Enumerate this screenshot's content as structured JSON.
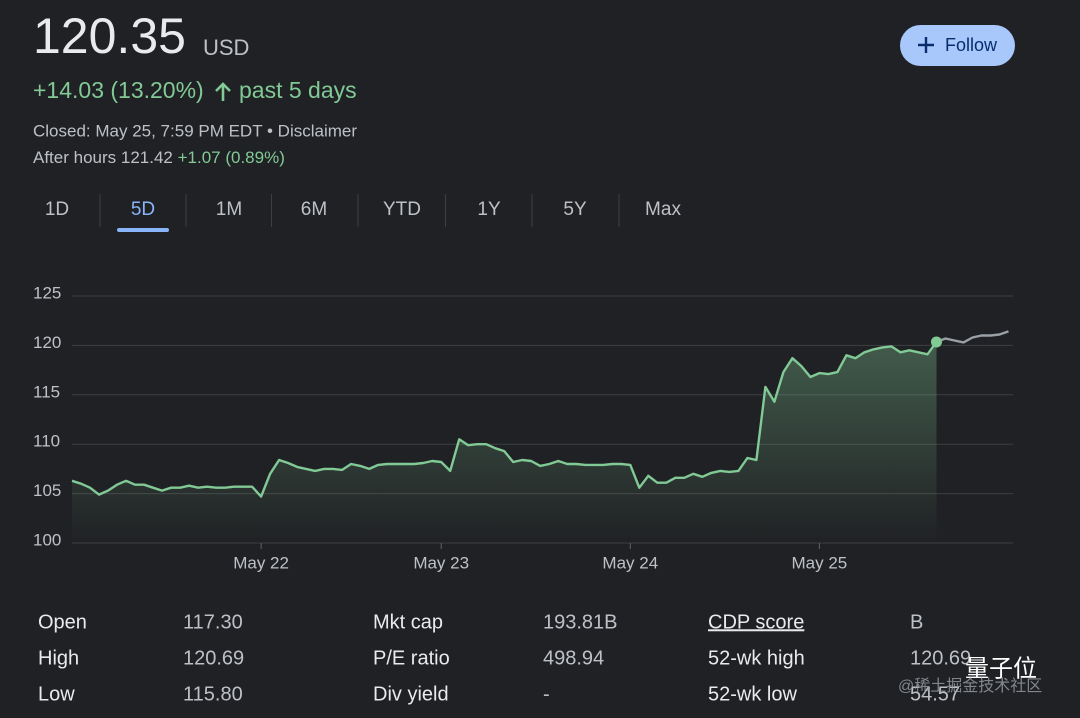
{
  "header": {
    "price": "120.35",
    "currency": "USD",
    "change": "+14.03 (13.20%)",
    "period": "past 5 days",
    "closed": "Closed: May 25, 7:59 PM EDT • Disclaimer",
    "after_hours": "After hours 121.42",
    "after_hours_change": "+1.07 (0.89%)",
    "follow": "Follow"
  },
  "tabs": [
    "1D",
    "5D",
    "1M",
    "6M",
    "YTD",
    "1Y",
    "5Y",
    "Max"
  ],
  "selected_tab": 1,
  "chart_data": {
    "type": "line",
    "color": "#81c995",
    "after_hours_color": "#9aa0a6",
    "values": [
      106.3,
      106.0,
      105.6,
      104.9,
      105.3,
      105.9,
      106.3,
      105.9,
      105.9,
      105.6,
      105.3,
      105.6,
      105.6,
      105.8,
      105.6,
      105.7,
      105.6,
      105.6,
      105.7,
      105.7,
      105.7,
      104.7,
      107.0,
      108.4,
      108.1,
      107.7,
      107.5,
      107.3,
      107.5,
      107.5,
      107.4,
      108.0,
      107.8,
      107.5,
      107.9,
      108.0,
      108.0,
      108.0,
      108.0,
      108.1,
      108.3,
      108.2,
      107.3,
      110.5,
      109.9,
      110.0,
      110.0,
      109.6,
      109.3,
      108.2,
      108.4,
      108.3,
      107.8,
      108.0,
      108.3,
      108.0,
      108.0,
      107.9,
      107.9,
      107.9,
      108.0,
      108.0,
      107.9,
      105.6,
      106.8,
      106.1,
      106.1,
      106.6,
      106.6,
      107.0,
      106.7,
      107.1,
      107.3,
      107.2,
      107.3,
      108.6,
      108.4,
      115.8,
      114.3,
      117.3,
      118.7,
      117.9,
      116.8,
      117.2,
      117.1,
      117.3,
      119.0,
      118.7,
      119.3,
      119.6,
      119.8,
      119.9,
      119.3,
      119.5,
      119.3,
      119.1,
      120.35
    ],
    "after_hours_values": [
      null,
      null,
      null,
      null,
      null,
      null,
      null,
      null,
      null,
      null,
      null,
      null,
      null,
      null,
      null,
      null,
      null,
      null,
      null,
      null,
      null,
      null,
      null,
      null,
      null,
      null,
      null,
      null,
      null,
      null,
      null,
      null,
      null,
      null,
      null,
      null,
      null,
      null,
      null,
      null,
      null,
      null,
      null,
      null,
      null,
      null,
      null,
      null,
      null,
      null,
      null,
      null,
      null,
      null,
      null,
      null,
      null,
      null,
      null,
      null,
      null,
      null,
      null,
      null,
      null,
      null,
      null,
      null,
      null,
      null,
      null,
      null,
      null,
      null,
      null,
      null,
      null,
      null,
      null,
      null,
      null,
      null,
      null,
      null,
      null,
      null,
      null,
      null,
      null,
      null,
      null,
      null,
      null,
      null,
      null,
      null,
      120.35,
      120.7,
      120.5,
      120.3,
      120.8,
      121.0,
      121.0,
      121.1,
      121.42
    ],
    "xlim": [
      0,
      104.5
    ],
    "xticks": [
      {
        "value": 21,
        "label": "May 22"
      },
      {
        "value": 41,
        "label": "May 23"
      },
      {
        "value": 62,
        "label": "May 24"
      },
      {
        "value": 83,
        "label": "May 25"
      }
    ],
    "ylim": [
      100,
      125
    ],
    "yticks": [
      100,
      105,
      110,
      115,
      120,
      125
    ],
    "grid": true
  },
  "stats": {
    "rows": [
      [
        "Open",
        "117.30",
        "Mkt cap",
        "193.81B",
        "CDP score",
        "B"
      ],
      [
        "High",
        "120.69",
        "P/E ratio",
        "498.94",
        "52-wk high",
        "120.69"
      ],
      [
        "Low",
        "115.80",
        "Div yield",
        "-",
        "52-wk low",
        "54.57"
      ]
    ]
  },
  "watermark": {
    "brand": "量子位",
    "source": "@稀土掘金技术社区"
  }
}
